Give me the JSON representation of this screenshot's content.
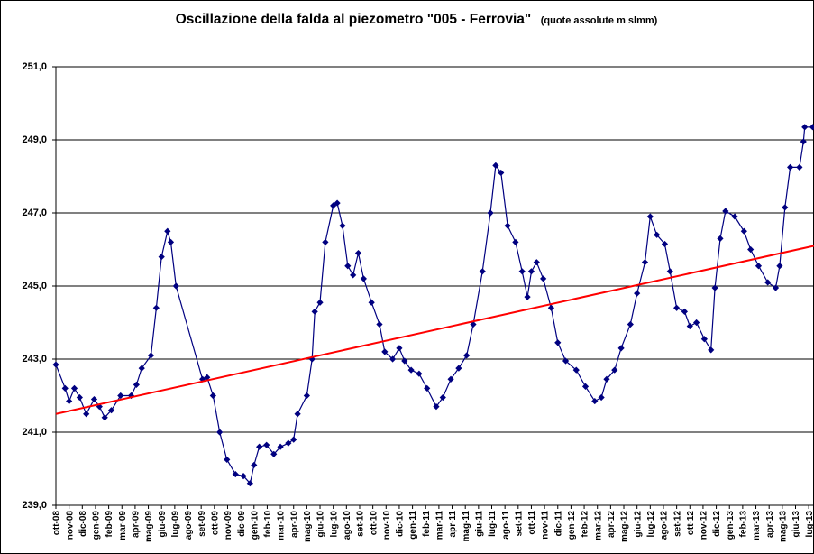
{
  "chart_data": {
    "type": "line",
    "title": "Oscillazione della falda al piezometro \"005 - Ferrovia\"",
    "subtitle": "(quote assolute m slmm)",
    "xlim": [
      0,
      57.4
    ],
    "xticks": [
      {
        "value": 0,
        "label": "ott-08"
      },
      {
        "value": 1,
        "label": "nov-08"
      },
      {
        "value": 2,
        "label": "dic-08"
      },
      {
        "value": 3,
        "label": "gen-09"
      },
      {
        "value": 4,
        "label": "feb-09"
      },
      {
        "value": 5,
        "label": "mar-09"
      },
      {
        "value": 6,
        "label": "apr-09"
      },
      {
        "value": 7,
        "label": "mag-09"
      },
      {
        "value": 8,
        "label": "giu-09"
      },
      {
        "value": 9,
        "label": "lug-09"
      },
      {
        "value": 10,
        "label": "ago-09"
      },
      {
        "value": 11,
        "label": "set-09"
      },
      {
        "value": 12,
        "label": "ott-09"
      },
      {
        "value": 13,
        "label": "nov-09"
      },
      {
        "value": 14,
        "label": "dic-09"
      },
      {
        "value": 15,
        "label": "gen-10"
      },
      {
        "value": 16,
        "label": "feb-10"
      },
      {
        "value": 17,
        "label": "mar-10"
      },
      {
        "value": 18,
        "label": "apr-10"
      },
      {
        "value": 19,
        "label": "mag-10"
      },
      {
        "value": 20,
        "label": "giu-10"
      },
      {
        "value": 21,
        "label": "lug-10"
      },
      {
        "value": 22,
        "label": "ago-10"
      },
      {
        "value": 23,
        "label": "set-10"
      },
      {
        "value": 24,
        "label": "ott-10"
      },
      {
        "value": 25,
        "label": "nov-10"
      },
      {
        "value": 26,
        "label": "dic-10"
      },
      {
        "value": 27,
        "label": "gen-11"
      },
      {
        "value": 28,
        "label": "feb-11"
      },
      {
        "value": 29,
        "label": "mar-11"
      },
      {
        "value": 30,
        "label": "apr-11"
      },
      {
        "value": 31,
        "label": "mag-11"
      },
      {
        "value": 32,
        "label": "giu-11"
      },
      {
        "value": 33,
        "label": "lug-11"
      },
      {
        "value": 34,
        "label": "ago-11"
      },
      {
        "value": 35,
        "label": "set-11"
      },
      {
        "value": 36,
        "label": "ott-11"
      },
      {
        "value": 37,
        "label": "nov-11"
      },
      {
        "value": 38,
        "label": "dic-11"
      },
      {
        "value": 39,
        "label": "gen-12"
      },
      {
        "value": 40,
        "label": "feb-12"
      },
      {
        "value": 41,
        "label": "mar-12"
      },
      {
        "value": 42,
        "label": "apr-12"
      },
      {
        "value": 43,
        "label": "mag-12"
      },
      {
        "value": 44,
        "label": "giu-12"
      },
      {
        "value": 45,
        "label": "lug-12"
      },
      {
        "value": 46,
        "label": "ago-12"
      },
      {
        "value": 47,
        "label": "set-12"
      },
      {
        "value": 48,
        "label": "ott-12"
      },
      {
        "value": 49,
        "label": "nov-12"
      },
      {
        "value": 50,
        "label": "dic-12"
      },
      {
        "value": 51,
        "label": "gen-13"
      },
      {
        "value": 52,
        "label": "feb-13"
      },
      {
        "value": 53,
        "label": "mar-13"
      },
      {
        "value": 54,
        "label": "apr-13"
      },
      {
        "value": 55,
        "label": "mag-13"
      },
      {
        "value": 56,
        "label": "giu-13"
      },
      {
        "value": 57,
        "label": "lug-13"
      }
    ],
    "ylim": [
      239,
      251
    ],
    "yticks": [
      {
        "value": 239,
        "label": "239,0"
      },
      {
        "value": 241,
        "label": "241,0"
      },
      {
        "value": 243,
        "label": "243,0"
      },
      {
        "value": 245,
        "label": "245,0"
      },
      {
        "value": 247,
        "label": "247,0"
      },
      {
        "value": 249,
        "label": "249,0"
      },
      {
        "value": 251,
        "label": "251,0"
      }
    ],
    "grid": true,
    "series": [
      {
        "color": "#000080",
        "x": [
          0,
          0.7,
          1.0,
          1.4,
          1.8,
          2.3,
          2.9,
          3.3,
          3.7,
          4.2,
          4.9,
          5.7,
          6.1,
          6.5,
          7.2,
          7.6,
          8.0,
          8.45,
          8.7,
          9.1,
          11.1,
          11.45,
          11.9,
          12.4,
          12.95,
          13.6,
          14.2,
          14.7,
          15.0,
          15.4,
          15.95,
          16.5,
          17.0,
          17.6,
          18.0,
          18.3,
          19.0,
          19.4,
          19.6,
          20.0,
          20.4,
          21.0,
          21.3,
          21.7,
          22.1,
          22.5,
          22.9,
          23.3,
          23.9,
          24.5,
          24.9,
          25.5,
          26.0,
          26.4,
          26.9,
          27.5,
          28.1,
          28.8,
          29.3,
          29.9,
          30.5,
          31.1,
          31.6,
          32.3,
          32.9,
          33.3,
          33.7,
          34.2,
          34.8,
          35.3,
          35.7,
          36.0,
          36.4,
          36.9,
          37.5,
          38.0,
          38.6,
          39.4,
          40.1,
          40.8,
          41.3,
          41.7,
          42.3,
          42.8,
          43.5,
          44.0,
          44.6,
          45.0,
          45.5,
          46.1,
          46.5,
          47.0,
          47.6,
          48.0,
          48.5,
          49.1,
          49.6,
          49.9,
          50.3,
          50.7,
          51.4,
          52.1,
          52.6,
          53.2,
          53.9,
          54.5,
          54.8,
          55.2,
          55.6,
          56.3,
          56.6,
          56.7,
          57.3
        ],
        "values": [
          242.85,
          242.2,
          241.85,
          242.2,
          241.95,
          241.5,
          241.9,
          241.7,
          241.4,
          241.6,
          242.0,
          242.0,
          242.3,
          242.75,
          243.1,
          244.4,
          245.8,
          246.5,
          246.2,
          245.0,
          242.45,
          242.5,
          242.0,
          241.0,
          240.25,
          239.85,
          239.8,
          239.6,
          240.1,
          240.6,
          240.65,
          240.4,
          240.6,
          240.7,
          240.8,
          241.5,
          242.0,
          243.0,
          244.3,
          244.55,
          246.2,
          247.2,
          247.27,
          246.65,
          245.55,
          245.3,
          245.9,
          245.2,
          244.55,
          243.95,
          243.2,
          243.0,
          243.3,
          242.95,
          242.7,
          242.6,
          242.2,
          241.7,
          241.95,
          242.45,
          242.75,
          243.1,
          243.95,
          245.4,
          247.0,
          248.3,
          248.1,
          246.65,
          246.2,
          245.4,
          244.7,
          245.4,
          245.65,
          245.2,
          244.4,
          243.45,
          242.95,
          242.7,
          242.25,
          241.85,
          241.95,
          242.45,
          242.7,
          243.3,
          243.95,
          244.8,
          245.65,
          246.9,
          246.4,
          246.15,
          245.4,
          244.4,
          244.3,
          243.9,
          244.0,
          243.55,
          243.25,
          244.95,
          246.3,
          247.05,
          246.9,
          246.5,
          246.0,
          245.55,
          245.1,
          244.95,
          245.55,
          247.15,
          248.25,
          248.25,
          248.95,
          249.35,
          249.35
        ]
      }
    ],
    "trendline": {
      "color": "#ff0000",
      "x": [
        0,
        57.4
      ],
      "values": [
        241.5,
        246.1
      ]
    }
  }
}
